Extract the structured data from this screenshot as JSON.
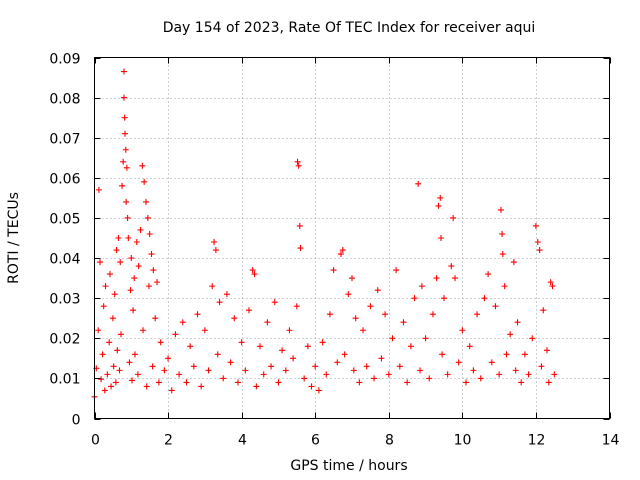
{
  "chart_data": {
    "type": "scatter",
    "title": "Day 154 of 2023, Rate Of TEC Index for receiver aqui",
    "xlabel": "GPS time / hours",
    "ylabel": "ROTI / TECUs",
    "xlim": [
      0,
      14
    ],
    "ylim": [
      0,
      0.09
    ],
    "x_ticks": [
      "0",
      "2",
      "4",
      "6",
      "8",
      "10",
      "12",
      "14"
    ],
    "y_ticks": [
      "0",
      "0.01",
      "0.02",
      "0.03",
      "0.04",
      "0.05",
      "0.06",
      "0.07",
      "0.08",
      "0.09"
    ],
    "grid": true,
    "marker": "plus",
    "color": "#ff0000",
    "series": [
      {
        "points": [
          [
            0.0,
            0.0054
          ],
          [
            0.05,
            0.0125
          ],
          [
            0.1,
            0.022
          ],
          [
            0.12,
            0.057
          ],
          [
            0.15,
            0.039
          ],
          [
            0.18,
            0.0098
          ],
          [
            0.22,
            0.016
          ],
          [
            0.25,
            0.028
          ],
          [
            0.28,
            0.007
          ],
          [
            0.3,
            0.033
          ],
          [
            0.35,
            0.011
          ],
          [
            0.4,
            0.019
          ],
          [
            0.42,
            0.036
          ],
          [
            0.45,
            0.008
          ],
          [
            0.5,
            0.025
          ],
          [
            0.52,
            0.013
          ],
          [
            0.55,
            0.031
          ],
          [
            0.58,
            0.009
          ],
          [
            0.6,
            0.042
          ],
          [
            0.62,
            0.017
          ],
          [
            0.65,
            0.045
          ],
          [
            0.68,
            0.012
          ],
          [
            0.7,
            0.039
          ],
          [
            0.72,
            0.021
          ],
          [
            0.75,
            0.058
          ],
          [
            0.78,
            0.064
          ],
          [
            0.8,
            0.0865
          ],
          [
            0.8,
            0.08
          ],
          [
            0.82,
            0.075
          ],
          [
            0.83,
            0.071
          ],
          [
            0.85,
            0.067
          ],
          [
            0.86,
            0.054
          ],
          [
            0.88,
            0.0625
          ],
          [
            0.9,
            0.05
          ],
          [
            0.92,
            0.045
          ],
          [
            0.95,
            0.014
          ],
          [
            0.98,
            0.032
          ],
          [
            1.0,
            0.04
          ],
          [
            1.02,
            0.0095
          ],
          [
            1.05,
            0.027
          ],
          [
            1.08,
            0.035
          ],
          [
            1.1,
            0.016
          ],
          [
            1.15,
            0.044
          ],
          [
            1.18,
            0.011
          ],
          [
            1.2,
            0.038
          ],
          [
            1.25,
            0.047
          ],
          [
            1.3,
            0.063
          ],
          [
            1.32,
            0.022
          ],
          [
            1.35,
            0.059
          ],
          [
            1.4,
            0.054
          ],
          [
            1.42,
            0.008
          ],
          [
            1.45,
            0.05
          ],
          [
            1.48,
            0.033
          ],
          [
            1.5,
            0.046
          ],
          [
            1.55,
            0.041
          ],
          [
            1.58,
            0.013
          ],
          [
            1.6,
            0.037
          ],
          [
            1.65,
            0.025
          ],
          [
            1.7,
            0.034
          ],
          [
            1.75,
            0.009
          ],
          [
            1.8,
            0.019
          ],
          [
            1.9,
            0.012
          ],
          [
            2.0,
            0.015
          ],
          [
            2.1,
            0.007
          ],
          [
            2.2,
            0.021
          ],
          [
            2.3,
            0.011
          ],
          [
            2.4,
            0.024
          ],
          [
            2.5,
            0.009
          ],
          [
            2.6,
            0.018
          ],
          [
            2.7,
            0.013
          ],
          [
            2.8,
            0.026
          ],
          [
            2.9,
            0.008
          ],
          [
            3.0,
            0.022
          ],
          [
            3.1,
            0.012
          ],
          [
            3.2,
            0.033
          ],
          [
            3.25,
            0.044
          ],
          [
            3.3,
            0.042
          ],
          [
            3.35,
            0.016
          ],
          [
            3.4,
            0.029
          ],
          [
            3.5,
            0.01
          ],
          [
            3.6,
            0.031
          ],
          [
            3.7,
            0.014
          ],
          [
            3.8,
            0.025
          ],
          [
            3.9,
            0.009
          ],
          [
            4.0,
            0.019
          ],
          [
            4.1,
            0.012
          ],
          [
            4.2,
            0.027
          ],
          [
            4.3,
            0.037
          ],
          [
            4.35,
            0.036
          ],
          [
            4.4,
            0.008
          ],
          [
            4.5,
            0.018
          ],
          [
            4.6,
            0.011
          ],
          [
            4.7,
            0.024
          ],
          [
            4.8,
            0.013
          ],
          [
            4.9,
            0.029
          ],
          [
            5.0,
            0.009
          ],
          [
            5.1,
            0.017
          ],
          [
            5.2,
            0.012
          ],
          [
            5.3,
            0.022
          ],
          [
            5.4,
            0.015
          ],
          [
            5.5,
            0.028
          ],
          [
            5.52,
            0.064
          ],
          [
            5.55,
            0.063
          ],
          [
            5.58,
            0.048
          ],
          [
            5.6,
            0.0425
          ],
          [
            5.7,
            0.01
          ],
          [
            5.8,
            0.018
          ],
          [
            5.9,
            0.008
          ],
          [
            6.0,
            0.013
          ],
          [
            6.1,
            0.007
          ],
          [
            6.2,
            0.019
          ],
          [
            6.3,
            0.011
          ],
          [
            6.4,
            0.026
          ],
          [
            6.5,
            0.037
          ],
          [
            6.6,
            0.014
          ],
          [
            6.7,
            0.041
          ],
          [
            6.75,
            0.042
          ],
          [
            6.8,
            0.016
          ],
          [
            6.9,
            0.031
          ],
          [
            7.0,
            0.035
          ],
          [
            7.05,
            0.012
          ],
          [
            7.1,
            0.025
          ],
          [
            7.2,
            0.009
          ],
          [
            7.3,
            0.022
          ],
          [
            7.4,
            0.013
          ],
          [
            7.5,
            0.028
          ],
          [
            7.6,
            0.01
          ],
          [
            7.7,
            0.032
          ],
          [
            7.8,
            0.015
          ],
          [
            7.9,
            0.026
          ],
          [
            8.0,
            0.011
          ],
          [
            8.1,
            0.02
          ],
          [
            8.2,
            0.037
          ],
          [
            8.3,
            0.013
          ],
          [
            8.4,
            0.024
          ],
          [
            8.5,
            0.009
          ],
          [
            8.6,
            0.018
          ],
          [
            8.7,
            0.03
          ],
          [
            8.8,
            0.0585
          ],
          [
            8.85,
            0.012
          ],
          [
            8.9,
            0.033
          ],
          [
            9.0,
            0.02
          ],
          [
            9.1,
            0.01
          ],
          [
            9.2,
            0.026
          ],
          [
            9.3,
            0.035
          ],
          [
            9.35,
            0.053
          ],
          [
            9.4,
            0.055
          ],
          [
            9.42,
            0.045
          ],
          [
            9.45,
            0.016
          ],
          [
            9.5,
            0.03
          ],
          [
            9.6,
            0.011
          ],
          [
            9.7,
            0.038
          ],
          [
            9.75,
            0.05
          ],
          [
            9.8,
            0.035
          ],
          [
            9.9,
            0.014
          ],
          [
            10.0,
            0.022
          ],
          [
            10.1,
            0.009
          ],
          [
            10.2,
            0.018
          ],
          [
            10.3,
            0.012
          ],
          [
            10.4,
            0.026
          ],
          [
            10.5,
            0.01
          ],
          [
            10.6,
            0.03
          ],
          [
            10.7,
            0.036
          ],
          [
            10.8,
            0.014
          ],
          [
            10.9,
            0.028
          ],
          [
            11.0,
            0.011
          ],
          [
            11.05,
            0.052
          ],
          [
            11.08,
            0.046
          ],
          [
            11.1,
            0.041
          ],
          [
            11.15,
            0.033
          ],
          [
            11.2,
            0.016
          ],
          [
            11.3,
            0.021
          ],
          [
            11.4,
            0.039
          ],
          [
            11.45,
            0.012
          ],
          [
            11.5,
            0.024
          ],
          [
            11.6,
            0.009
          ],
          [
            11.7,
            0.016
          ],
          [
            11.8,
            0.011
          ],
          [
            11.9,
            0.02
          ],
          [
            12.0,
            0.048
          ],
          [
            12.05,
            0.044
          ],
          [
            12.1,
            0.042
          ],
          [
            12.15,
            0.013
          ],
          [
            12.2,
            0.027
          ],
          [
            12.3,
            0.017
          ],
          [
            12.35,
            0.009
          ],
          [
            12.4,
            0.034
          ],
          [
            12.45,
            0.033
          ],
          [
            12.5,
            0.011
          ]
        ]
      }
    ]
  }
}
